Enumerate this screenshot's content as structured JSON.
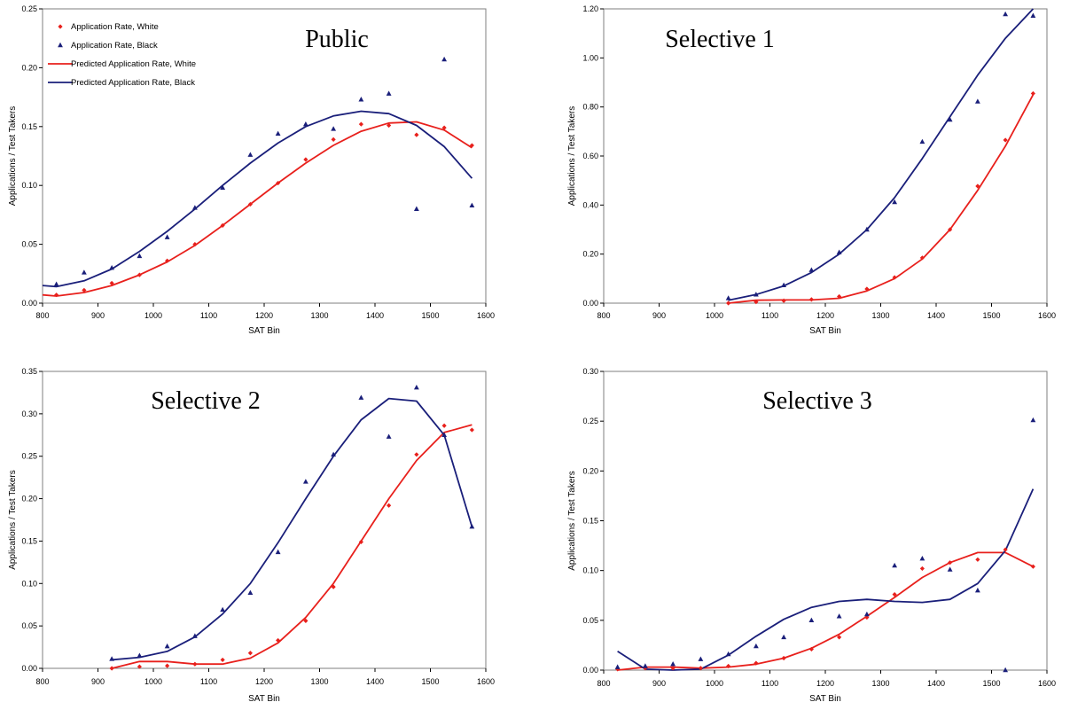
{
  "chart_data": [
    {
      "type": "scatter",
      "panel_title": "Public",
      "xlabel": "SAT Bin",
      "ylabel": "Applications / Test Takers",
      "xlim": [
        800,
        1600
      ],
      "ylim": [
        0,
        0.25
      ],
      "xticks": [
        800,
        900,
        1000,
        1100,
        1200,
        1300,
        1400,
        1500,
        1600
      ],
      "yticks": [
        "0.00",
        "0.05",
        "0.10",
        "0.15",
        "0.20",
        "0.25"
      ],
      "legend": [
        "Application Rate, White",
        "Application Rate, Black",
        "Predicted Application Rate, White",
        "Predicted Application Rate, Black"
      ],
      "series": [
        {
          "name": "Application Rate, White",
          "kind": "points",
          "color": "#e8201c",
          "marker": "diamond",
          "x": [
            825,
            875,
            925,
            975,
            1025,
            1075,
            1125,
            1175,
            1225,
            1275,
            1325,
            1375,
            1425,
            1475,
            1525,
            1575
          ],
          "y": [
            0.007,
            0.011,
            0.017,
            0.024,
            0.036,
            0.05,
            0.066,
            0.084,
            0.102,
            0.122,
            0.139,
            0.152,
            0.151,
            0.143,
            0.149,
            0.134
          ]
        },
        {
          "name": "Application Rate, Black",
          "kind": "points",
          "color": "#1a1f7a",
          "marker": "triangle",
          "x": [
            825,
            875,
            925,
            975,
            1025,
            1075,
            1125,
            1175,
            1225,
            1275,
            1325,
            1375,
            1425,
            1475,
            1525,
            1575
          ],
          "y": [
            0.016,
            0.026,
            0.03,
            0.04,
            0.056,
            0.081,
            0.098,
            0.126,
            0.144,
            0.152,
            0.148,
            0.173,
            0.178,
            0.08,
            0.207,
            0.083
          ]
        },
        {
          "name": "Predicted Application Rate, White",
          "kind": "line",
          "color": "#e8201c",
          "x": [
            800,
            825,
            875,
            925,
            975,
            1025,
            1075,
            1125,
            1175,
            1225,
            1275,
            1325,
            1375,
            1425,
            1475,
            1525,
            1575
          ],
          "y": [
            0.007,
            0.006,
            0.009,
            0.015,
            0.024,
            0.035,
            0.049,
            0.066,
            0.084,
            0.102,
            0.119,
            0.134,
            0.146,
            0.153,
            0.154,
            0.147,
            0.132
          ]
        },
        {
          "name": "Predicted Application Rate, Black",
          "kind": "line",
          "color": "#1a1f7a",
          "x": [
            800,
            825,
            875,
            925,
            975,
            1025,
            1075,
            1125,
            1175,
            1225,
            1275,
            1325,
            1375,
            1425,
            1475,
            1525,
            1575
          ],
          "y": [
            0.015,
            0.014,
            0.019,
            0.029,
            0.044,
            0.061,
            0.08,
            0.1,
            0.119,
            0.136,
            0.15,
            0.159,
            0.163,
            0.161,
            0.151,
            0.133,
            0.106
          ]
        }
      ]
    },
    {
      "type": "scatter",
      "panel_title": "Selective 1",
      "xlabel": "SAT Bin",
      "ylabel": "Applications / Test Takers",
      "xlim": [
        800,
        1600
      ],
      "ylim": [
        0,
        1.2
      ],
      "xticks": [
        800,
        900,
        1000,
        1100,
        1200,
        1300,
        1400,
        1500,
        1600
      ],
      "yticks": [
        "0.00",
        "0.20",
        "0.40",
        "0.60",
        "0.80",
        "1.00",
        "1.20"
      ],
      "series": [
        {
          "name": "Application Rate, White",
          "kind": "points",
          "color": "#e8201c",
          "marker": "diamond",
          "x": [
            1025,
            1075,
            1125,
            1175,
            1225,
            1275,
            1325,
            1375,
            1425,
            1475,
            1525,
            1575
          ],
          "y": [
            0.0,
            0.005,
            0.01,
            0.015,
            0.027,
            0.058,
            0.105,
            0.185,
            0.3,
            0.477,
            0.665,
            0.855
          ]
        },
        {
          "name": "Application Rate, Black",
          "kind": "points",
          "color": "#1a1f7a",
          "marker": "triangle",
          "x": [
            1025,
            1075,
            1125,
            1175,
            1225,
            1275,
            1325,
            1375,
            1425,
            1475,
            1525,
            1575
          ],
          "y": [
            0.02,
            0.035,
            0.073,
            0.135,
            0.207,
            0.3,
            0.412,
            0.658,
            0.748,
            0.822,
            1.178,
            1.172
          ]
        },
        {
          "name": "Predicted Application Rate, White",
          "kind": "line",
          "color": "#e8201c",
          "x": [
            1025,
            1075,
            1125,
            1175,
            1225,
            1275,
            1325,
            1375,
            1425,
            1475,
            1525,
            1575
          ],
          "y": [
            0.0,
            0.012,
            0.013,
            0.013,
            0.02,
            0.05,
            0.1,
            0.18,
            0.3,
            0.46,
            0.64,
            0.85
          ]
        },
        {
          "name": "Predicted Application Rate, Black",
          "kind": "line",
          "color": "#1a1f7a",
          "x": [
            1025,
            1075,
            1125,
            1175,
            1225,
            1275,
            1325,
            1375,
            1425,
            1475,
            1525,
            1575
          ],
          "y": [
            0.012,
            0.035,
            0.07,
            0.125,
            0.2,
            0.3,
            0.43,
            0.59,
            0.76,
            0.93,
            1.08,
            1.2
          ]
        }
      ]
    },
    {
      "type": "scatter",
      "panel_title": "Selective 2",
      "xlabel": "SAT Bin",
      "ylabel": "Applications / Test Takers",
      "xlim": [
        800,
        1600
      ],
      "ylim": [
        0,
        0.35
      ],
      "xticks": [
        800,
        900,
        1000,
        1100,
        1200,
        1300,
        1400,
        1500,
        1600
      ],
      "yticks": [
        "0.00",
        "0.05",
        "0.10",
        "0.15",
        "0.20",
        "0.25",
        "0.30",
        "0.35"
      ],
      "series": [
        {
          "name": "Application Rate, White",
          "kind": "points",
          "color": "#e8201c",
          "marker": "diamond",
          "x": [
            925,
            975,
            1025,
            1075,
            1125,
            1175,
            1225,
            1275,
            1325,
            1375,
            1425,
            1475,
            1525,
            1575
          ],
          "y": [
            0.0,
            0.002,
            0.003,
            0.005,
            0.01,
            0.018,
            0.033,
            0.056,
            0.096,
            0.149,
            0.192,
            0.252,
            0.286,
            0.281
          ]
        },
        {
          "name": "Application Rate, Black",
          "kind": "points",
          "color": "#1a1f7a",
          "marker": "triangle",
          "x": [
            925,
            975,
            1025,
            1075,
            1125,
            1175,
            1225,
            1275,
            1325,
            1375,
            1425,
            1475,
            1525,
            1575
          ],
          "y": [
            0.011,
            0.015,
            0.026,
            0.038,
            0.069,
            0.089,
            0.137,
            0.22,
            0.252,
            0.319,
            0.273,
            0.331,
            0.275,
            0.167
          ]
        },
        {
          "name": "Predicted Application Rate, White",
          "kind": "line",
          "color": "#e8201c",
          "x": [
            925,
            975,
            1025,
            1075,
            1125,
            1175,
            1225,
            1275,
            1325,
            1375,
            1425,
            1475,
            1525,
            1575
          ],
          "y": [
            0.0,
            0.008,
            0.008,
            0.005,
            0.005,
            0.012,
            0.03,
            0.06,
            0.1,
            0.15,
            0.2,
            0.245,
            0.278,
            0.287
          ]
        },
        {
          "name": "Predicted Application Rate, Black",
          "kind": "line",
          "color": "#1a1f7a",
          "x": [
            925,
            975,
            1025,
            1075,
            1125,
            1175,
            1225,
            1275,
            1325,
            1375,
            1425,
            1475,
            1525,
            1575
          ],
          "y": [
            0.01,
            0.013,
            0.02,
            0.037,
            0.064,
            0.1,
            0.148,
            0.2,
            0.25,
            0.293,
            0.318,
            0.315,
            0.275,
            0.167
          ]
        }
      ]
    },
    {
      "type": "scatter",
      "panel_title": "Selective 3",
      "xlabel": "SAT Bin",
      "ylabel": "Applications / Test Takers",
      "xlim": [
        800,
        1600
      ],
      "ylim": [
        0,
        0.3
      ],
      "xticks": [
        800,
        900,
        1000,
        1100,
        1200,
        1300,
        1400,
        1500,
        1600
      ],
      "yticks": [
        "0.00",
        "0.05",
        "0.10",
        "0.15",
        "0.20",
        "0.25",
        "0.30"
      ],
      "series": [
        {
          "name": "Application Rate, White",
          "kind": "points",
          "color": "#e8201c",
          "marker": "diamond",
          "x": [
            825,
            875,
            925,
            975,
            1025,
            1075,
            1125,
            1175,
            1225,
            1275,
            1325,
            1375,
            1425,
            1475,
            1525,
            1575
          ],
          "y": [
            0.001,
            0.002,
            0.002,
            0.002,
            0.004,
            0.007,
            0.012,
            0.021,
            0.033,
            0.053,
            0.076,
            0.102,
            0.108,
            0.111,
            0.121,
            0.104
          ]
        },
        {
          "name": "Application Rate, Black",
          "kind": "points",
          "color": "#1a1f7a",
          "marker": "triangle",
          "x": [
            825,
            875,
            925,
            975,
            1025,
            1075,
            1125,
            1175,
            1225,
            1275,
            1325,
            1375,
            1425,
            1475,
            1525,
            1575
          ],
          "y": [
            0.003,
            0.004,
            0.006,
            0.011,
            0.016,
            0.024,
            0.033,
            0.05,
            0.054,
            0.056,
            0.105,
            0.112,
            0.101,
            0.08,
            0.0,
            0.251
          ]
        },
        {
          "name": "Predicted Application Rate, White",
          "kind": "line",
          "color": "#e8201c",
          "x": [
            825,
            875,
            925,
            975,
            1025,
            1075,
            1125,
            1175,
            1225,
            1275,
            1325,
            1375,
            1425,
            1475,
            1525,
            1575
          ],
          "y": [
            0.0,
            0.003,
            0.003,
            0.002,
            0.003,
            0.006,
            0.012,
            0.022,
            0.036,
            0.054,
            0.073,
            0.093,
            0.108,
            0.118,
            0.118,
            0.104
          ]
        },
        {
          "name": "Predicted Application Rate, Black",
          "kind": "line",
          "color": "#1a1f7a",
          "x": [
            825,
            875,
            925,
            975,
            1025,
            1075,
            1125,
            1175,
            1225,
            1275,
            1325,
            1375,
            1425,
            1475,
            1525,
            1575
          ],
          "y": [
            0.019,
            0.001,
            0.0,
            0.001,
            0.015,
            0.034,
            0.051,
            0.063,
            0.069,
            0.071,
            0.069,
            0.068,
            0.071,
            0.087,
            0.12,
            0.182
          ]
        }
      ]
    }
  ]
}
